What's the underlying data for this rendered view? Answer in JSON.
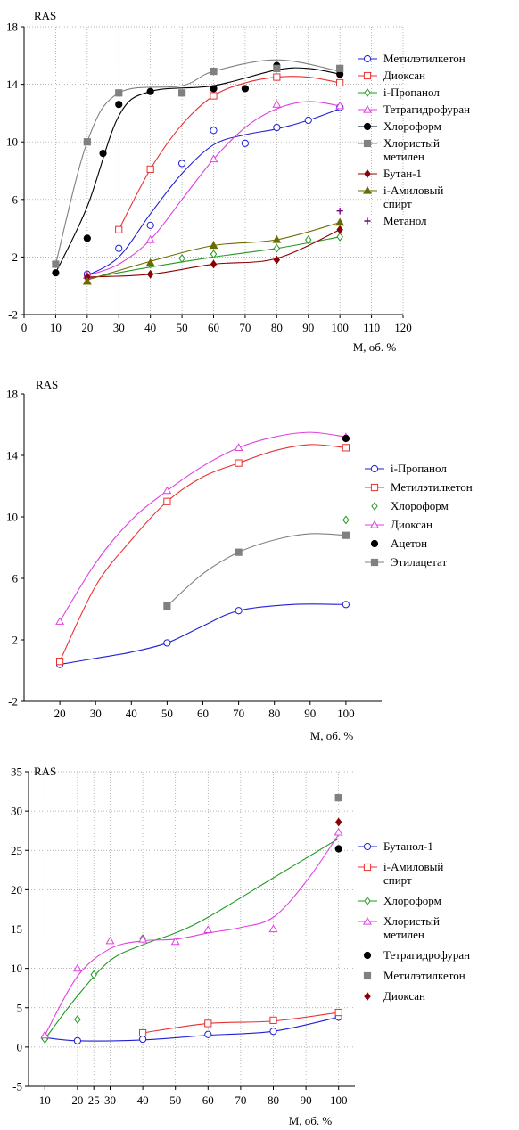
{
  "chart_data": [
    {
      "type": "scatter",
      "ylabel": "RAS",
      "xlabel": "M, об. %",
      "xlim": [
        0,
        120
      ],
      "ylim": [
        -2,
        18
      ],
      "xticks": [
        0,
        10,
        20,
        30,
        40,
        50,
        60,
        70,
        80,
        90,
        100,
        110,
        120
      ],
      "yticks": [
        -2,
        2,
        6,
        10,
        14,
        18
      ],
      "grid": true,
      "legend_position": "right",
      "series": [
        {
          "name": "Метилэтилкетон",
          "color": "#1f1fd6",
          "marker": "circle",
          "x": [
            20,
            30,
            40,
            50,
            60,
            70,
            80,
            90,
            100
          ],
          "y": [
            0.8,
            2.6,
            4.2,
            8.5,
            10.8,
            9.9,
            11.0,
            11.5,
            12.4
          ],
          "curve": [
            [
              20,
              0.7
            ],
            [
              30,
              2.0
            ],
            [
              40,
              5.0
            ],
            [
              50,
              7.8
            ],
            [
              60,
              9.8
            ],
            [
              70,
              10.5
            ],
            [
              80,
              10.9
            ],
            [
              90,
              11.5
            ],
            [
              100,
              12.3
            ]
          ]
        },
        {
          "name": "Диоксан",
          "color": "#e83030",
          "marker": "square",
          "x": [
            30,
            40,
            60,
            80,
            100
          ],
          "y": [
            3.9,
            8.1,
            13.2,
            14.5,
            14.1
          ],
          "curve": [
            [
              30,
              3.9
            ],
            [
              40,
              8.1
            ],
            [
              50,
              11.2
            ],
            [
              60,
              13.2
            ],
            [
              70,
              14.1
            ],
            [
              80,
              14.5
            ],
            [
              90,
              14.5
            ],
            [
              100,
              14.1
            ]
          ]
        },
        {
          "name": "i-Пропанол",
          "color": "#229922",
          "marker": "diamond",
          "x": [
            20,
            40,
            50,
            60,
            80,
            90,
            100
          ],
          "y": [
            0.5,
            1.5,
            1.9,
            2.2,
            2.6,
            3.2,
            3.4
          ],
          "curve": [
            [
              20,
              0.5
            ],
            [
              40,
              1.3
            ],
            [
              60,
              2.0
            ],
            [
              80,
              2.6
            ],
            [
              100,
              3.4
            ]
          ]
        },
        {
          "name": "Тетрагидрофуран",
          "color": "#e040e0",
          "marker": "triangle",
          "x": [
            20,
            40,
            60,
            80,
            100
          ],
          "y": [
            0.7,
            3.2,
            8.8,
            12.6,
            12.5
          ],
          "curve": [
            [
              20,
              0.7
            ],
            [
              30,
              1.5
            ],
            [
              40,
              3.2
            ],
            [
              50,
              6.0
            ],
            [
              60,
              8.8
            ],
            [
              70,
              11.0
            ],
            [
              80,
              12.3
            ],
            [
              90,
              12.8
            ],
            [
              100,
              12.5
            ]
          ]
        },
        {
          "name": "Хлороформ",
          "color": "#000000",
          "marker": "dot",
          "x": [
            10,
            20,
            25,
            30,
            40,
            60,
            70,
            80,
            100
          ],
          "y": [
            0.9,
            3.3,
            9.2,
            12.6,
            13.5,
            13.7,
            13.7,
            15.3,
            14.7
          ],
          "curve": [
            [
              10,
              0.9
            ],
            [
              20,
              5.5
            ],
            [
              30,
              11.8
            ],
            [
              40,
              13.5
            ],
            [
              60,
              13.9
            ],
            [
              80,
              15.0
            ],
            [
              90,
              15.1
            ],
            [
              100,
              14.7
            ]
          ]
        },
        {
          "name": "Хлористый метилен",
          "color": "#808080",
          "marker": "filled-square",
          "x": [
            10,
            20,
            30,
            50,
            60,
            80,
            100
          ],
          "y": [
            1.5,
            10.0,
            13.4,
            13.4,
            14.9,
            15.1,
            15.1
          ],
          "curve": [
            [
              10,
              1.5
            ],
            [
              20,
              10.0
            ],
            [
              30,
              13.4
            ],
            [
              50,
              13.9
            ],
            [
              60,
              14.9
            ],
            [
              80,
              15.7
            ],
            [
              100,
              14.9
            ]
          ]
        },
        {
          "name": "Бутан-1",
          "color": "#8b0000",
          "marker": "filled-diamond",
          "x": [
            20,
            40,
            60,
            80,
            100
          ],
          "y": [
            0.6,
            0.8,
            1.5,
            1.8,
            3.9
          ],
          "curve": [
            [
              20,
              0.6
            ],
            [
              40,
              0.8
            ],
            [
              60,
              1.5
            ],
            [
              80,
              1.9
            ],
            [
              100,
              3.9
            ]
          ]
        },
        {
          "name": "i-Амиловый спирт",
          "color": "#6b6b00",
          "marker": "filled-triangle",
          "x": [
            20,
            40,
            60,
            80,
            100
          ],
          "y": [
            0.3,
            1.6,
            2.8,
            3.2,
            4.4
          ],
          "curve": [
            [
              20,
              0.4
            ],
            [
              40,
              1.7
            ],
            [
              60,
              2.8
            ],
            [
              80,
              3.2
            ],
            [
              100,
              4.4
            ]
          ]
        },
        {
          "name": "Метанол",
          "color": "#800080",
          "marker": "plus",
          "x": [
            100
          ],
          "y": [
            5.2
          ],
          "curve": []
        }
      ]
    },
    {
      "type": "scatter",
      "ylabel": "RAS",
      "xlabel": "M, об. %",
      "xlim": [
        10,
        110
      ],
      "ylim": [
        -2,
        18
      ],
      "xticks": [
        20,
        30,
        40,
        50,
        60,
        70,
        80,
        90,
        100
      ],
      "yticks": [
        -2,
        2,
        6,
        10,
        14,
        18
      ],
      "grid": false,
      "legend_position": "right",
      "series": [
        {
          "name": "i-Пропанол",
          "color": "#1f1fd6",
          "marker": "circle",
          "x": [
            20,
            50,
            70,
            100
          ],
          "y": [
            0.4,
            1.8,
            3.9,
            4.3
          ],
          "curve": [
            [
              20,
              0.4
            ],
            [
              30,
              0.8
            ],
            [
              40,
              1.2
            ],
            [
              50,
              1.8
            ],
            [
              60,
              2.9
            ],
            [
              70,
              3.9
            ],
            [
              85,
              4.3
            ],
            [
              100,
              4.3
            ]
          ]
        },
        {
          "name": "Метилэтилкетон",
          "color": "#e83030",
          "marker": "square",
          "x": [
            20,
            50,
            70,
            100
          ],
          "y": [
            0.6,
            11.0,
            13.5,
            14.5
          ],
          "curve": [
            [
              20,
              0.6
            ],
            [
              30,
              5.5
            ],
            [
              40,
              8.5
            ],
            [
              50,
              11.0
            ],
            [
              60,
              12.6
            ],
            [
              70,
              13.5
            ],
            [
              80,
              14.3
            ],
            [
              90,
              14.7
            ],
            [
              100,
              14.5
            ]
          ]
        },
        {
          "name": "Хлороформ",
          "color": "#229922",
          "marker": "diamond",
          "x": [
            100
          ],
          "y": [
            9.8
          ],
          "curve": []
        },
        {
          "name": "Диоксан",
          "color": "#e040e0",
          "marker": "triangle",
          "x": [
            20,
            50,
            70,
            100
          ],
          "y": [
            3.2,
            11.7,
            14.5,
            15.2
          ],
          "curve": [
            [
              20,
              3.2
            ],
            [
              30,
              7.0
            ],
            [
              40,
              9.8
            ],
            [
              50,
              11.7
            ],
            [
              60,
              13.3
            ],
            [
              70,
              14.5
            ],
            [
              80,
              15.2
            ],
            [
              90,
              15.5
            ],
            [
              100,
              15.2
            ]
          ]
        },
        {
          "name": "Ацетон",
          "color": "#000000",
          "marker": "dot",
          "x": [
            100
          ],
          "y": [
            15.1
          ],
          "curve": []
        },
        {
          "name": "Этилацетат",
          "color": "#808080",
          "marker": "filled-square",
          "x": [
            50,
            70,
            100
          ],
          "y": [
            4.2,
            7.7,
            8.8
          ],
          "curve": [
            [
              50,
              4.2
            ],
            [
              60,
              6.3
            ],
            [
              70,
              7.7
            ],
            [
              80,
              8.5
            ],
            [
              90,
              8.9
            ],
            [
              100,
              8.8
            ]
          ]
        }
      ]
    },
    {
      "type": "scatter",
      "ylabel": "RAS",
      "xlabel": "M, об. %",
      "xlim": [
        5,
        105
      ],
      "ylim": [
        -5,
        35
      ],
      "xticks": [
        10,
        20,
        25,
        30,
        40,
        50,
        60,
        70,
        80,
        90,
        100
      ],
      "yticks": [
        -5,
        0,
        5,
        10,
        15,
        20,
        25,
        30,
        35
      ],
      "grid": true,
      "legend_position": "right",
      "series": [
        {
          "name": "Бутанол-1",
          "color": "#1f1fd6",
          "marker": "circle",
          "x": [
            10,
            20,
            40,
            60,
            80,
            100
          ],
          "y": [
            1.2,
            0.8,
            1.0,
            1.6,
            2.0,
            3.8
          ],
          "curve": [
            [
              10,
              1.2
            ],
            [
              20,
              0.8
            ],
            [
              40,
              0.9
            ],
            [
              60,
              1.5
            ],
            [
              80,
              2.0
            ],
            [
              100,
              3.8
            ]
          ]
        },
        {
          "name": "i-Амиловый спирт",
          "color": "#e83030",
          "marker": "square",
          "x": [
            40,
            60,
            80,
            100
          ],
          "y": [
            1.8,
            3.0,
            3.4,
            4.4
          ],
          "curve": [
            [
              40,
              1.8
            ],
            [
              60,
              3.0
            ],
            [
              80,
              3.3
            ],
            [
              100,
              4.4
            ]
          ]
        },
        {
          "name": "Хлороформ",
          "color": "#229922",
          "marker": "diamond",
          "x": [
            10,
            20,
            25,
            40
          ],
          "y": [
            1.0,
            3.5,
            9.2,
            13.8
          ],
          "curve": [
            [
              10,
              1.0
            ],
            [
              20,
              6.5
            ],
            [
              30,
              11.0
            ],
            [
              40,
              13.0
            ],
            [
              50,
              14.5
            ],
            [
              60,
              16.5
            ],
            [
              80,
              21.5
            ],
            [
              100,
              26.5
            ]
          ]
        },
        {
          "name": "Хлористый метилен",
          "color": "#e040e0",
          "marker": "triangle",
          "x": [
            10,
            20,
            30,
            40,
            50,
            60,
            80,
            100
          ],
          "y": [
            1.5,
            10.0,
            13.5,
            13.7,
            13.4,
            14.9,
            15.0,
            27.3
          ],
          "curve": [
            [
              10,
              1.5
            ],
            [
              20,
              9.0
            ],
            [
              30,
              12.5
            ],
            [
              40,
              13.5
            ],
            [
              50,
              13.7
            ],
            [
              60,
              14.5
            ],
            [
              70,
              15.2
            ],
            [
              80,
              16.5
            ],
            [
              90,
              21.0
            ],
            [
              100,
              27.0
            ]
          ]
        },
        {
          "name": "Тетрагидрофуран",
          "color": "#000000",
          "marker": "dot",
          "x": [
            100
          ],
          "y": [
            25.2
          ],
          "curve": []
        },
        {
          "name": "Метилэтилкетон",
          "color": "#808080",
          "marker": "filled-square",
          "x": [
            100
          ],
          "y": [
            31.7
          ],
          "curve": []
        },
        {
          "name": "Диоксан",
          "color": "#8b0000",
          "marker": "filled-diamond",
          "x": [
            100
          ],
          "y": [
            28.6
          ],
          "curve": []
        }
      ]
    }
  ]
}
